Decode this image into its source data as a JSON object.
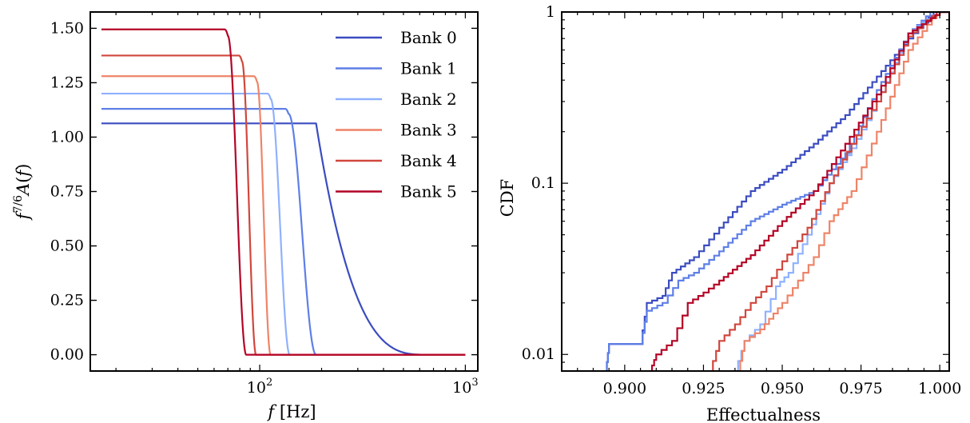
{
  "chart_data": [
    {
      "type": "line",
      "xscale": "log",
      "xlim": [
        15,
        1150
      ],
      "ylim": [
        -0.075,
        1.575
      ],
      "xlabel": "f [Hz]",
      "ylabel": "f^{7/6}A(f)",
      "xticks": [
        {
          "value": 100,
          "label": "10",
          "exp": "2"
        },
        {
          "value": 1000,
          "label": "10",
          "exp": "3"
        }
      ],
      "yticks": [
        0.0,
        0.25,
        0.5,
        0.75,
        1.0,
        1.25,
        1.5
      ],
      "ytick_labels": [
        "0.00",
        "0.25",
        "0.50",
        "0.75",
        "1.00",
        "1.25",
        "1.50"
      ],
      "grid": false,
      "legend_position": "top-right",
      "series": [
        {
          "name": "Bank 0",
          "color": "#3b4cc0",
          "plateau": 1.063,
          "x_start": 17,
          "cutoff": 188,
          "end": 650,
          "rolloff": "smooth"
        },
        {
          "name": "Bank 1",
          "color": "#5e7fe6",
          "plateau": 1.13,
          "x_start": 17,
          "cutoff": 138,
          "end": 188,
          "rolloff": "sharp"
        },
        {
          "name": "Bank 2",
          "color": "#8fb1fe",
          "plateau": 1.2,
          "x_start": 17,
          "cutoff": 113,
          "end": 140,
          "rolloff": "sharp"
        },
        {
          "name": "Bank 3",
          "color": "#ee8468",
          "plateau": 1.28,
          "x_start": 17,
          "cutoff": 97,
          "end": 113,
          "rolloff": "sharp"
        },
        {
          "name": "Bank 4",
          "color": "#d0473d",
          "plateau": 1.375,
          "x_start": 17,
          "cutoff": 82,
          "end": 96,
          "rolloff": "sharp"
        },
        {
          "name": "Bank 5",
          "color": "#b40426",
          "plateau": 1.495,
          "x_start": 17,
          "cutoff": 70,
          "end": 86,
          "rolloff": "sharp"
        }
      ]
    },
    {
      "type": "line",
      "yscale": "log",
      "xlim": [
        0.88,
        1.003
      ],
      "ylim": [
        0.008,
        1.0
      ],
      "xlabel": "Effectualness",
      "ylabel": "CDF",
      "xticks": [
        0.9,
        0.925,
        0.95,
        0.975,
        1.0
      ],
      "xtick_labels": [
        "0.900",
        "0.925",
        "0.950",
        "0.975",
        "1.000"
      ],
      "yticks": [
        0.01,
        0.1,
        1
      ],
      "ytick_labels": [
        "0.01",
        "0.1",
        "1"
      ],
      "grid": false,
      "series": [
        {
          "name": "Bank 0",
          "color": "#3b4cc0",
          "points": [
            [
              0.894,
              0.008
            ],
            [
              0.895,
              0.0115
            ],
            [
              0.905,
              0.0115
            ],
            [
              0.907,
              0.02
            ],
            [
              0.912,
              0.022
            ],
            [
              0.915,
              0.03
            ],
            [
              0.922,
              0.037
            ],
            [
              0.93,
              0.055
            ],
            [
              0.94,
              0.09
            ],
            [
              0.95,
              0.12
            ],
            [
              0.96,
              0.17
            ],
            [
              0.97,
              0.25
            ],
            [
              0.98,
              0.42
            ],
            [
              0.99,
              0.7
            ],
            [
              0.998,
              1.0
            ],
            [
              1.003,
              1.0
            ]
          ]
        },
        {
          "name": "Bank 1",
          "color": "#5e7fe6",
          "points": [
            [
              0.894,
              0.008
            ],
            [
              0.895,
              0.0115
            ],
            [
              0.905,
              0.0115
            ],
            [
              0.907,
              0.018
            ],
            [
              0.912,
              0.02
            ],
            [
              0.917,
              0.027
            ],
            [
              0.922,
              0.03
            ],
            [
              0.93,
              0.04
            ],
            [
              0.94,
              0.06
            ],
            [
              0.95,
              0.075
            ],
            [
              0.96,
              0.09
            ],
            [
              0.97,
              0.15
            ],
            [
              0.98,
              0.35
            ],
            [
              0.99,
              0.75
            ],
            [
              0.997,
              1.0
            ],
            [
              1.003,
              1.0
            ]
          ]
        },
        {
          "name": "Bank 2",
          "color": "#8fb1fe",
          "points": [
            [
              0.935,
              0.008
            ],
            [
              0.938,
              0.012
            ],
            [
              0.943,
              0.015
            ],
            [
              0.948,
              0.025
            ],
            [
              0.952,
              0.03
            ],
            [
              0.958,
              0.05
            ],
            [
              0.965,
              0.1
            ],
            [
              0.972,
              0.16
            ],
            [
              0.98,
              0.3
            ],
            [
              0.99,
              0.75
            ],
            [
              0.999,
              1.0
            ],
            [
              1.003,
              1.0
            ]
          ]
        },
        {
          "name": "Bank 3",
          "color": "#ee8468",
          "points": [
            [
              0.936,
              0.008
            ],
            [
              0.938,
              0.012
            ],
            [
              0.943,
              0.014
            ],
            [
              0.95,
              0.02
            ],
            [
              0.955,
              0.027
            ],
            [
              0.96,
              0.037
            ],
            [
              0.965,
              0.06
            ],
            [
              0.972,
              0.09
            ],
            [
              0.98,
              0.2
            ],
            [
              0.99,
              0.6
            ],
            [
              0.999,
              1.0
            ],
            [
              1.003,
              1.0
            ]
          ]
        },
        {
          "name": "Bank 4",
          "color": "#d0473d",
          "points": [
            [
              0.927,
              0.008
            ],
            [
              0.93,
              0.012
            ],
            [
              0.935,
              0.015
            ],
            [
              0.94,
              0.02
            ],
            [
              0.945,
              0.025
            ],
            [
              0.95,
              0.035
            ],
            [
              0.958,
              0.055
            ],
            [
              0.965,
              0.1
            ],
            [
              0.972,
              0.17
            ],
            [
              0.98,
              0.3
            ],
            [
              0.99,
              0.72
            ],
            [
              0.999,
              1.0
            ],
            [
              1.003,
              1.0
            ]
          ]
        },
        {
          "name": "Bank 5",
          "color": "#b40426",
          "points": [
            [
              0.908,
              0.008
            ],
            [
              0.91,
              0.01
            ],
            [
              0.915,
              0.012
            ],
            [
              0.92,
              0.02
            ],
            [
              0.925,
              0.023
            ],
            [
              0.93,
              0.027
            ],
            [
              0.94,
              0.038
            ],
            [
              0.95,
              0.06
            ],
            [
              0.96,
              0.09
            ],
            [
              0.97,
              0.17
            ],
            [
              0.98,
              0.33
            ],
            [
              0.99,
              0.75
            ],
            [
              1.0,
              1.0
            ],
            [
              1.003,
              1.0
            ]
          ]
        }
      ]
    }
  ]
}
